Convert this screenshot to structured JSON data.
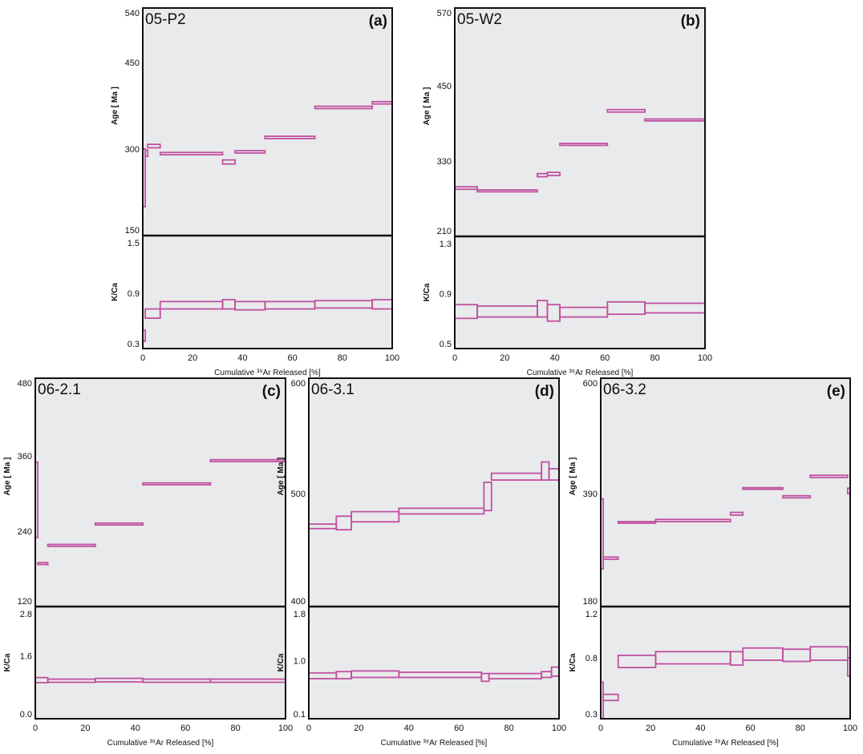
{
  "colors": {
    "line": "#c050a0",
    "panel_bg": "#e9eaec",
    "frame": "#111111"
  },
  "chart_data": [
    {
      "type": "line",
      "subtype": "step-spectrum",
      "sample": "05-P2",
      "letter": "(a)",
      "age_label": "Age [ Ma ]",
      "kca_label": "K/Ca",
      "xlabel": "Cumulative ³⁹Ar Released [%]",
      "xlim": [
        0,
        100
      ],
      "xticks": [
        "0",
        "20",
        "40",
        "60",
        "80",
        "100"
      ],
      "age_ylim": [
        150,
        540
      ],
      "age_ticks": [
        "540",
        "450",
        "300",
        "150"
      ],
      "kca_ylim": [
        0.3,
        1.5
      ],
      "kca_ticks": [
        "1.5",
        "0.9",
        "0.3"
      ],
      "age_steps": [
        [
          0,
          1,
          200,
          300
        ],
        [
          1,
          2,
          287,
          298
        ],
        [
          2,
          7,
          302,
          308
        ],
        [
          7,
          32,
          290,
          294
        ],
        [
          32,
          37,
          274,
          281
        ],
        [
          37,
          49,
          293,
          297
        ],
        [
          49,
          69,
          318,
          322
        ],
        [
          69,
          92,
          370,
          374
        ],
        [
          92,
          100,
          378,
          382
        ]
      ],
      "kca_steps": [
        [
          0,
          1,
          0.38,
          0.5
        ],
        [
          1,
          7,
          0.63,
          0.73
        ],
        [
          7,
          32,
          0.73,
          0.81
        ],
        [
          32,
          37,
          0.73,
          0.83
        ],
        [
          37,
          49,
          0.72,
          0.81
        ],
        [
          49,
          69,
          0.73,
          0.81
        ],
        [
          69,
          92,
          0.74,
          0.82
        ],
        [
          92,
          100,
          0.73,
          0.83
        ]
      ]
    },
    {
      "type": "line",
      "subtype": "step-spectrum",
      "sample": "05-W2",
      "letter": "(b)",
      "age_label": "Age [ Ma ]",
      "kca_label": "K/Ca",
      "xlabel": "Cumulative ³⁹Ar Released [%]",
      "xlim": [
        0,
        100
      ],
      "xticks": [
        "0",
        "20",
        "40",
        "60",
        "80",
        "100"
      ],
      "age_ylim": [
        210,
        570
      ],
      "age_ticks": [
        "570",
        "450",
        "330",
        "210"
      ],
      "kca_ylim": [
        0.5,
        1.3
      ],
      "kca_ticks": [
        "1.3",
        "0.9",
        "0.5"
      ],
      "age_steps": [
        [
          0,
          9,
          285,
          289
        ],
        [
          9,
          33,
          281,
          284
        ],
        [
          33,
          37,
          305,
          310
        ],
        [
          37,
          42,
          307,
          312
        ],
        [
          42,
          61,
          355,
          358
        ],
        [
          61,
          76,
          408,
          412
        ],
        [
          76,
          100,
          394,
          397
        ]
      ],
      "kca_steps": [
        [
          0,
          9,
          0.72,
          0.82
        ],
        [
          9,
          33,
          0.73,
          0.81
        ],
        [
          33,
          37,
          0.73,
          0.85
        ],
        [
          37,
          42,
          0.7,
          0.82
        ],
        [
          42,
          61,
          0.73,
          0.8
        ],
        [
          61,
          76,
          0.75,
          0.84
        ],
        [
          76,
          100,
          0.76,
          0.83
        ]
      ]
    },
    {
      "type": "line",
      "subtype": "step-spectrum",
      "sample": "06-2.1",
      "letter": "(c)",
      "age_label": "Age [ Ma ]",
      "kca_label": "K/Ca",
      "xlabel": "Cumulative ³⁹Ar Released [%]",
      "xlim": [
        0,
        100
      ],
      "xticks": [
        "0",
        "20",
        "40",
        "60",
        "80",
        "100"
      ],
      "age_ylim": [
        120,
        480
      ],
      "age_ticks": [
        "480",
        "360",
        "240",
        "120"
      ],
      "kca_ylim": [
        0.0,
        2.8
      ],
      "kca_ticks": [
        "2.8",
        "1.6",
        "0.0"
      ],
      "age_steps": [
        [
          0,
          1,
          230,
          350
        ],
        [
          1,
          5,
          187,
          190
        ],
        [
          5,
          24,
          216,
          219
        ],
        [
          24,
          43,
          250,
          253
        ],
        [
          43,
          70,
          314,
          317
        ],
        [
          70,
          100,
          351,
          354
        ]
      ],
      "kca_steps": [
        [
          0,
          5,
          0.92,
          1.05
        ],
        [
          5,
          24,
          0.93,
          1.01
        ],
        [
          24,
          43,
          0.94,
          1.03
        ],
        [
          43,
          70,
          0.93,
          1.01
        ],
        [
          70,
          100,
          0.93,
          1.01
        ]
      ]
    },
    {
      "type": "line",
      "subtype": "step-spectrum",
      "sample": "06-3.1",
      "letter": "(d)",
      "age_label": "Age [ Ma ]",
      "kca_label": "K/Ca",
      "xlabel": "Cumulative ³⁹Ar Released [%]",
      "xlim": [
        0,
        100
      ],
      "xticks": [
        "0",
        "20",
        "40",
        "60",
        "80",
        "100"
      ],
      "age_ylim": [
        400,
        600
      ],
      "age_ticks": [
        "600",
        "500",
        "400"
      ],
      "kca_ylim": [
        0.1,
        1.8
      ],
      "kca_ticks": [
        "1.8",
        "1.0",
        "0.1"
      ],
      "age_steps": [
        [
          0,
          11,
          469,
          473
        ],
        [
          11,
          17,
          468,
          480
        ],
        [
          17,
          36,
          475,
          484
        ],
        [
          36,
          70,
          482,
          487
        ],
        [
          70,
          73,
          485,
          510
        ],
        [
          73,
          93,
          512,
          518
        ],
        [
          93,
          96,
          512,
          528
        ],
        [
          96,
          100,
          512,
          522
        ]
      ],
      "kca_steps": [
        [
          0,
          11,
          0.72,
          0.81
        ],
        [
          11,
          17,
          0.72,
          0.83
        ],
        [
          17,
          36,
          0.74,
          0.84
        ],
        [
          36,
          69,
          0.74,
          0.82
        ],
        [
          69,
          72,
          0.68,
          0.8
        ],
        [
          72,
          93,
          0.72,
          0.8
        ],
        [
          93,
          97,
          0.74,
          0.83
        ],
        [
          97,
          100,
          0.76,
          0.9
        ]
      ]
    },
    {
      "type": "line",
      "subtype": "step-spectrum",
      "sample": "06-3.2",
      "letter": "(e)",
      "age_label": "Age [ Ma ]",
      "kca_label": "K/Ca",
      "xlabel": "Cumulative ³⁹Ar Released [%]",
      "xlim": [
        0,
        100
      ],
      "xticks": [
        "0",
        "20",
        "40",
        "60",
        "80",
        "100"
      ],
      "age_ylim": [
        180,
        600
      ],
      "age_ticks": [
        "600",
        "390",
        "180"
      ],
      "kca_ylim": [
        0.3,
        1.2
      ],
      "kca_ticks": [
        "1.2",
        "0.8",
        "0.3"
      ],
      "age_steps": [
        [
          0,
          1,
          250,
          380
        ],
        [
          1,
          7,
          268,
          272
        ],
        [
          7,
          22,
          335,
          338
        ],
        [
          22,
          52,
          338,
          342
        ],
        [
          52,
          57,
          350,
          355
        ],
        [
          57,
          73,
          398,
          401
        ],
        [
          73,
          84,
          382,
          386
        ],
        [
          84,
          99,
          420,
          424
        ],
        [
          99,
          100,
          390,
          400
        ]
      ],
      "kca_steps": [
        [
          0,
          1,
          0.3,
          0.6
        ],
        [
          1,
          7,
          0.45,
          0.5
        ],
        [
          7,
          22,
          0.72,
          0.82
        ],
        [
          22,
          52,
          0.75,
          0.85
        ],
        [
          52,
          57,
          0.74,
          0.85
        ],
        [
          57,
          73,
          0.78,
          0.88
        ],
        [
          73,
          84,
          0.77,
          0.87
        ],
        [
          84,
          99,
          0.78,
          0.89
        ],
        [
          99,
          100,
          0.65,
          0.8
        ]
      ]
    }
  ]
}
